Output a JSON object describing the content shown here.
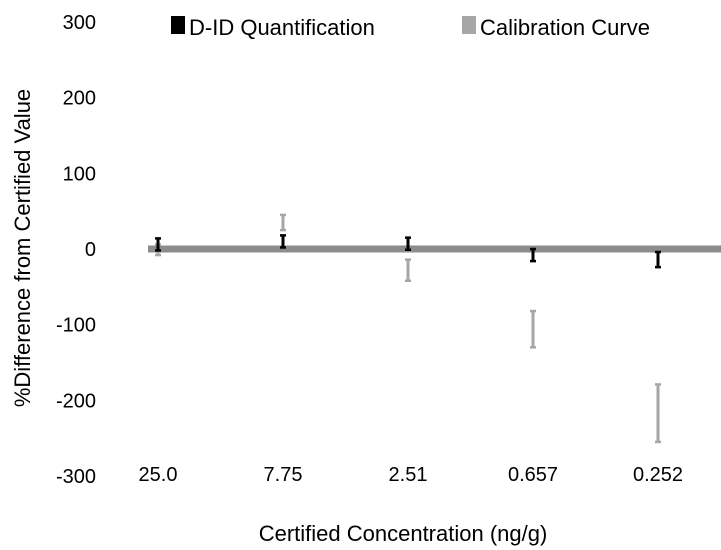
{
  "chart_data": {
    "type": "scatter",
    "categories": [
      "25.0",
      "7.75",
      "2.51",
      "0.657",
      "0.252"
    ],
    "xlabel": "Certified Concentration (ng/g)",
    "ylabel": "%Difference from Certified Value",
    "ylim": [
      -300,
      300
    ],
    "yticks": [
      "300",
      "200",
      "100",
      "0",
      "-100",
      "-200",
      "-300"
    ],
    "grid": false,
    "legend_position": "top",
    "reference_line": {
      "y": 0,
      "color": "#8c8c8c"
    },
    "series": [
      {
        "name": "D-ID Quantification",
        "color": "#000000",
        "values": [
          6,
          10,
          7,
          -8,
          -14
        ],
        "error": [
          8,
          8,
          8,
          8,
          10
        ]
      },
      {
        "name": "Calibration Curve",
        "color": "#a6a6a6",
        "values": [
          -1,
          35,
          -28,
          -106,
          -217
        ],
        "error": [
          7,
          10,
          14,
          24,
          38
        ]
      }
    ]
  }
}
